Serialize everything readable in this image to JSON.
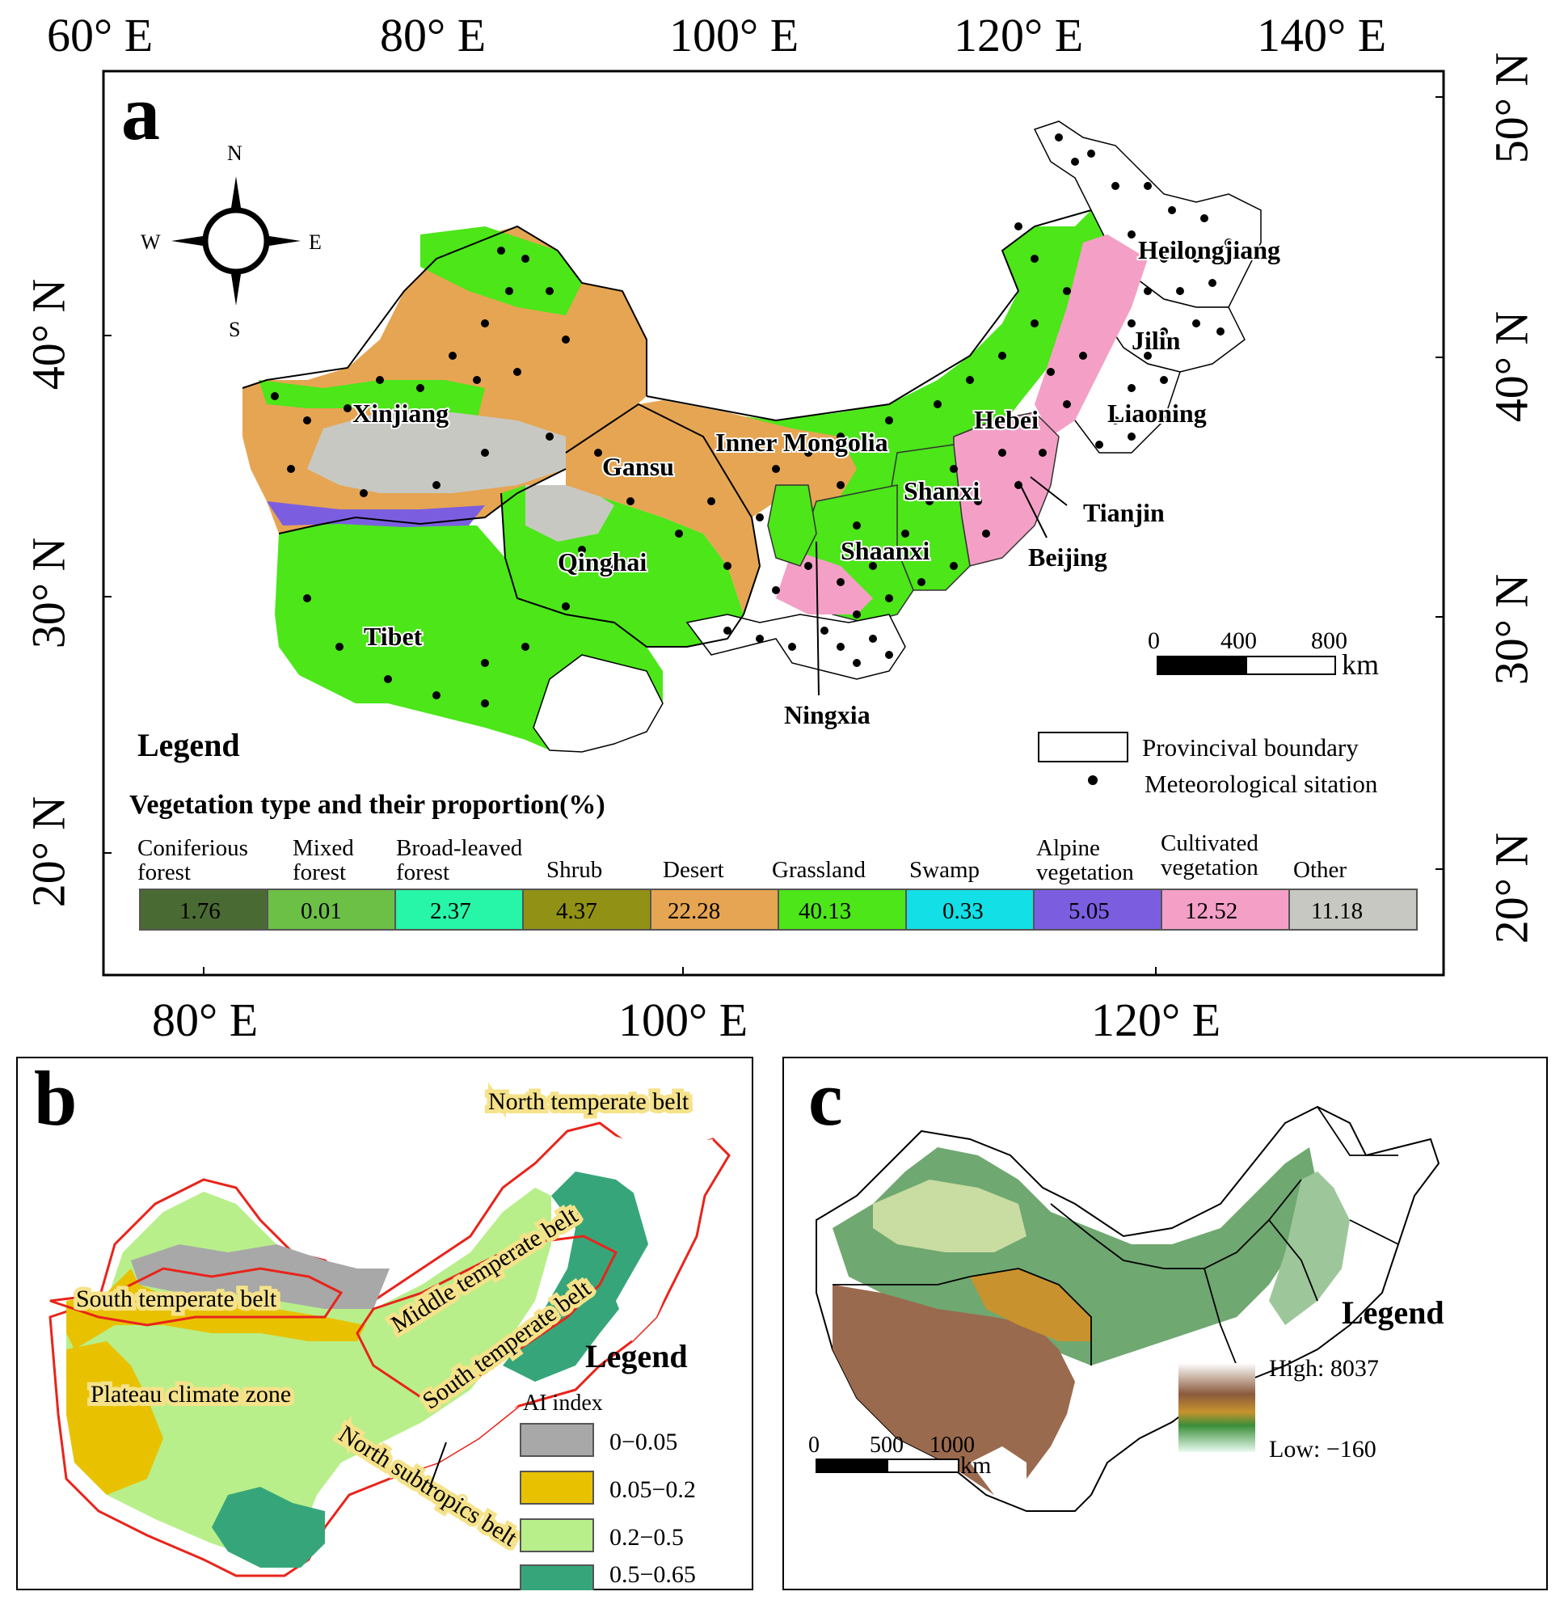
{
  "panel_a": {
    "letter": "a",
    "top_axis": [
      "60° E",
      "80° E",
      "100° E",
      "120° E",
      "140° E"
    ],
    "bottom_axis": [
      "80° E",
      "100° E",
      "120° E"
    ],
    "left_axis": [
      "40° N",
      "30° N",
      "20° N"
    ],
    "right_axis": [
      "50° N",
      "40° N",
      "30° N",
      "20° N"
    ],
    "compass": {
      "n": "N",
      "s": "S",
      "e": "E",
      "w": "W"
    },
    "province_labels": {
      "xinjiang": "Xinjiang",
      "tibet": "Tibet",
      "qinghai": "Qinghai",
      "gansu": "Gansu",
      "inner_mongolia": "Inner Mongolia",
      "ningxia": "Ningxia",
      "shaanxi": "Shaanxi",
      "shanxi": "Shanxi",
      "hebei": "Hebei",
      "beijing": "Beijing",
      "tianjin": "Tianjin",
      "liaoning": "Liaoning",
      "jilin": "Jilin",
      "heilongjiang": "Heilongjiang"
    },
    "scale_bar": {
      "ticks": [
        "0",
        "400",
        "800"
      ],
      "unit": "km"
    },
    "legend": {
      "title": "Legend",
      "boundary_label": "Provincival boundary",
      "station_label": "Meteorological sitation",
      "vegetation_title": "Vegetation type and their proportion(%)",
      "vegetation": [
        {
          "name": "Coniferious forest",
          "line1": "Coniferious",
          "line2": "forest",
          "value": "1.76",
          "color": "#4a6a34"
        },
        {
          "name": "Mixed forest",
          "line1": "Mixed",
          "line2": "forest",
          "value": "0.01",
          "color": "#6cc046"
        },
        {
          "name": "Broad-leaved forest",
          "line1": "Broad-leaved",
          "line2": "forest",
          "value": "2.37",
          "color": "#27f5a8"
        },
        {
          "name": "Shrub",
          "line1": "",
          "line2": "Shrub",
          "value": "4.37",
          "color": "#919116"
        },
        {
          "name": "Desert",
          "line1": "",
          "line2": "Desert",
          "value": "22.28",
          "color": "#e6a552"
        },
        {
          "name": "Grassland",
          "line1": "",
          "line2": "Grassland",
          "value": "40.13",
          "color": "#4ce619"
        },
        {
          "name": "Swamp",
          "line1": "",
          "line2": "Swamp",
          "value": "0.33",
          "color": "#12e0e6"
        },
        {
          "name": "Alpine vegetation",
          "line1": "Alpine",
          "line2": "vegetation",
          "value": "5.05",
          "color": "#7b5ee0"
        },
        {
          "name": "Cultivated vegetation",
          "line1": "Cultivated",
          "line2": "vegetation",
          "value": "12.52",
          "color": "#f4a0c6"
        },
        {
          "name": "Other",
          "line1": "",
          "line2": "Other",
          "value": "11.18",
          "color": "#c8c8c2"
        }
      ]
    }
  },
  "panel_b": {
    "letter": "b",
    "zones": {
      "north_temperate": "North temperate belt",
      "middle_temperate": "Middle temperate belt",
      "south_temperate_west": "South temperate belt",
      "south_temperate_east": "South temperate belt",
      "plateau": "Plateau climate zone",
      "north_subtropics": "North subtropics belt"
    },
    "legend": {
      "title": "Legend",
      "subtitle": "AI index",
      "items": [
        {
          "label": "0−0.05",
          "color": "#a8a8a8"
        },
        {
          "label": "0.05−0.2",
          "color": "#e8c200"
        },
        {
          "label": "0.2−0.5",
          "color": "#b8ef8a"
        },
        {
          "label": "0.5−0.65",
          "color": "#36a67a"
        }
      ]
    }
  },
  "panel_c": {
    "letter": "c",
    "legend": {
      "title": "Legend",
      "high": "High: 8037",
      "low": "Low: −160"
    },
    "scale_bar": {
      "ticks": [
        "0",
        "500",
        "1000"
      ],
      "unit": "km"
    }
  }
}
